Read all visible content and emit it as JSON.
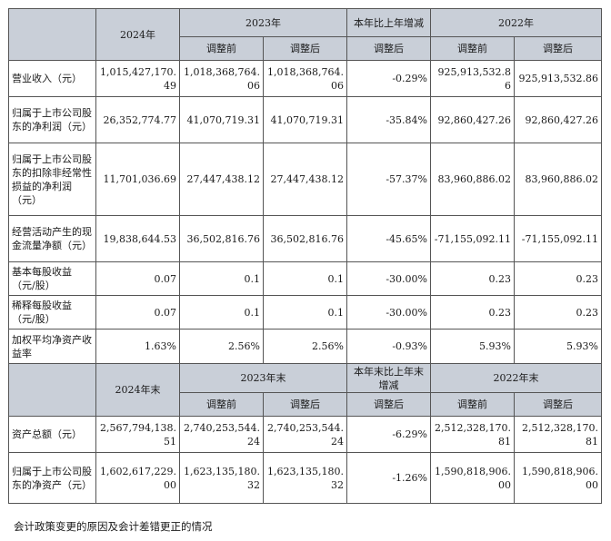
{
  "header1": {
    "col_2024": "2024年",
    "col_2023": "2023年",
    "col_change": "本年比上年增减",
    "col_2022": "2022年",
    "sub_before": "调整前",
    "sub_after": "调整后"
  },
  "rows1": [
    {
      "label": "营业收入（元）",
      "v2024": "1,015,427,170.49",
      "v2023a": "1,018,368,764.06",
      "v2023b": "1,018,368,764.06",
      "chg": "-0.29%",
      "v2022a": "925,913,532.86",
      "v2022b": "925,913,532.86"
    },
    {
      "label": "归属于上市公司股东的净利润（元）",
      "v2024": "26,352,774.77",
      "v2023a": "41,070,719.31",
      "v2023b": "41,070,719.31",
      "chg": "-35.84%",
      "v2022a": "92,860,427.26",
      "v2022b": "92,860,427.26"
    },
    {
      "label": "归属于上市公司股东的扣除非经常性损益的净利润（元）",
      "v2024": "11,701,036.69",
      "v2023a": "27,447,438.12",
      "v2023b": "27,447,438.12",
      "chg": "-57.37%",
      "v2022a": "83,960,886.02",
      "v2022b": "83,960,886.02"
    },
    {
      "label": "经营活动产生的现金流量净额（元）",
      "v2024": "19,838,644.53",
      "v2023a": "36,502,816.76",
      "v2023b": "36,502,816.76",
      "chg": "-45.65%",
      "v2022a": "-71,155,092.11",
      "v2022b": "-71,155,092.11"
    },
    {
      "label": "基本每股收益（元/股）",
      "v2024": "0.07",
      "v2023a": "0.1",
      "v2023b": "0.1",
      "chg": "-30.00%",
      "v2022a": "0.23",
      "v2022b": "0.23"
    },
    {
      "label": "稀释每股收益（元/股）",
      "v2024": "0.07",
      "v2023a": "0.1",
      "v2023b": "0.1",
      "chg": "-30.00%",
      "v2022a": "0.23",
      "v2022b": "0.23"
    },
    {
      "label": "加权平均净资产收益率",
      "v2024": "1.63%",
      "v2023a": "2.56%",
      "v2023b": "2.56%",
      "chg": "-0.93%",
      "v2022a": "5.93%",
      "v2022b": "5.93%"
    }
  ],
  "header2": {
    "col_2024": "2024年末",
    "col_2023": "2023年末",
    "col_change": "本年末比上年末增减",
    "col_2022": "2022年末",
    "sub_before": "调整前",
    "sub_after": "调整后"
  },
  "rows2": [
    {
      "label": "资产总额（元）",
      "v2024": "2,567,794,138.51",
      "v2023a": "2,740,253,544.24",
      "v2023b": "2,740,253,544.24",
      "chg": "-6.29%",
      "v2022a": "2,512,328,170.81",
      "v2022b": "2,512,328,170.81"
    },
    {
      "label": "归属于上市公司股东的净资产（元）",
      "v2024": "1,602,617,229.00",
      "v2023a": "1,623,135,180.32",
      "v2023b": "1,623,135,180.32",
      "chg": "-1.26%",
      "v2022a": "1,590,818,906.00",
      "v2022b": "1,590,818,906.00"
    }
  ],
  "footer_text": "会计政策变更的原因及会计差错更正的情况"
}
